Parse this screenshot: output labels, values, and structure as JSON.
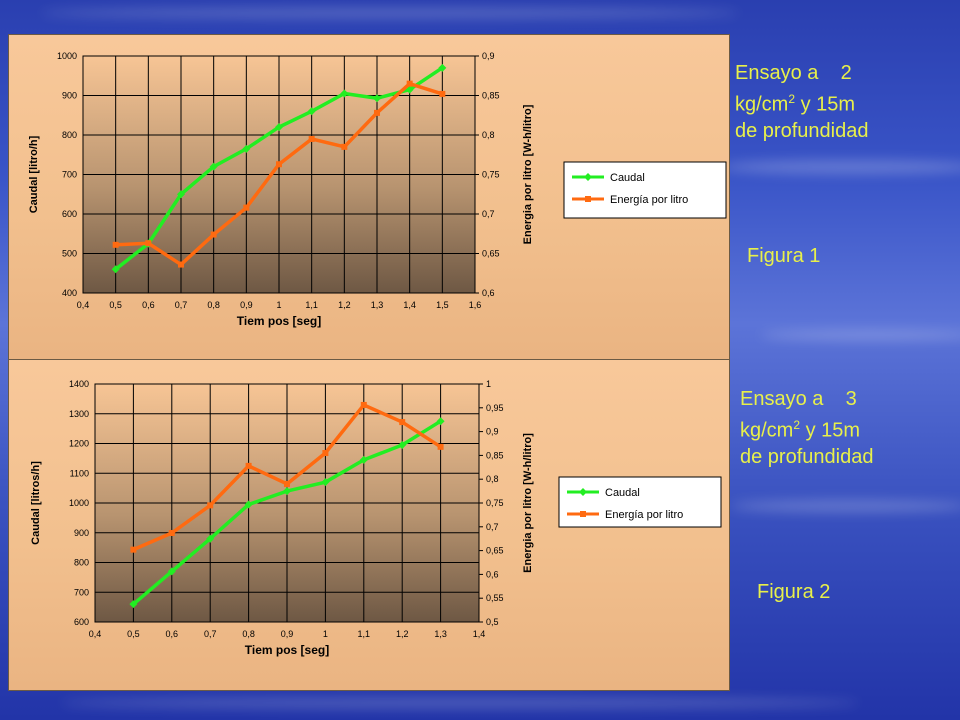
{
  "chart_data": [
    {
      "type": "line",
      "xlabel": "Tiem pos [seg]",
      "ylabel": "Caudal [litro/h]",
      "y2label": "Energia por litro [W-h/litro]",
      "x_ticks": [
        "0,4",
        "0,5",
        "0,6",
        "0,7",
        "0,8",
        "0,9",
        "1",
        "1,1",
        "1,2",
        "1,3",
        "1,4",
        "1,5",
        "1,6"
      ],
      "y_ticks": [
        "400",
        "500",
        "600",
        "700",
        "800",
        "900",
        "1000"
      ],
      "y2_ticks": [
        "0,6",
        "0,65",
        "0,7",
        "0,75",
        "0,8",
        "0,85",
        "0,9"
      ],
      "xlim": [
        0.4,
        1.6
      ],
      "ylim": [
        400,
        1000
      ],
      "y2lim": [
        0.6,
        0.9
      ],
      "grid": true,
      "legend_position": "right",
      "series": [
        {
          "name": "Caudal",
          "axis": "left",
          "color": "#22ee22",
          "x": [
            0.5,
            0.6,
            0.7,
            0.8,
            0.9,
            1.0,
            1.1,
            1.2,
            1.3,
            1.4,
            1.5
          ],
          "values": [
            460,
            525,
            650,
            720,
            765,
            820,
            860,
            905,
            893,
            915,
            970
          ]
        },
        {
          "name": "Energía por litro",
          "axis": "right",
          "color": "#ff6a10",
          "x": [
            0.5,
            0.6,
            0.7,
            0.8,
            0.9,
            1.0,
            1.1,
            1.2,
            1.3,
            1.4,
            1.5
          ],
          "values": [
            0.661,
            0.663,
            0.636,
            0.674,
            0.708,
            0.763,
            0.795,
            0.785,
            0.828,
            0.865,
            0.852
          ]
        }
      ]
    },
    {
      "type": "line",
      "xlabel": "Tiem pos [seg]",
      "ylabel": "Caudal [litros/h]",
      "y2label": "Energia por litro [W-h/litro]",
      "x_ticks": [
        "0,4",
        "0,5",
        "0,6",
        "0,7",
        "0,8",
        "0,9",
        "1",
        "1,1",
        "1,2",
        "1,3",
        "1,4"
      ],
      "y_ticks": [
        "600",
        "700",
        "800",
        "900",
        "1000",
        "1100",
        "1200",
        "1300",
        "1400"
      ],
      "y2_ticks": [
        "0,5",
        "0,55",
        "0,6",
        "0,65",
        "0,7",
        "0,75",
        "0,8",
        "0,85",
        "0,9",
        "0,95",
        "1"
      ],
      "xlim": [
        0.4,
        1.4
      ],
      "ylim": [
        600,
        1400
      ],
      "y2lim": [
        0.5,
        1.0
      ],
      "grid": true,
      "legend_position": "right",
      "series": [
        {
          "name": "Caudal",
          "axis": "left",
          "color": "#22ee22",
          "x": [
            0.5,
            0.6,
            0.7,
            0.8,
            0.9,
            1.0,
            1.1,
            1.2,
            1.3
          ],
          "values": [
            660,
            770,
            880,
            995,
            1040,
            1070,
            1145,
            1195,
            1275
          ]
        },
        {
          "name": "Energía por litro",
          "axis": "right",
          "color": "#ff6a10",
          "x": [
            0.5,
            0.6,
            0.7,
            0.8,
            0.9,
            1.0,
            1.1,
            1.2,
            1.3
          ],
          "values": [
            0.652,
            0.687,
            0.745,
            0.828,
            0.79,
            0.855,
            0.956,
            0.92,
            0.868
          ]
        }
      ]
    }
  ],
  "captions": {
    "fig1_line1": "Ensayo a",
    "fig1_num": "2",
    "fig1_unit_pre": "kg/cm",
    "fig1_sup": "2",
    "fig1_unit_post": " y 15m",
    "fig1_line3": "de profundidad",
    "fig1_label": "Figura 1",
    "fig2_line1": "Ensayo a",
    "fig2_num": "3",
    "fig2_unit_pre": "kg/cm",
    "fig2_sup": "2",
    "fig2_unit_post": " y 15m",
    "fig2_line3": "de profundidad",
    "fig2_label": "Figura 2"
  },
  "colors": {
    "caption_text": "#e8f04a"
  }
}
